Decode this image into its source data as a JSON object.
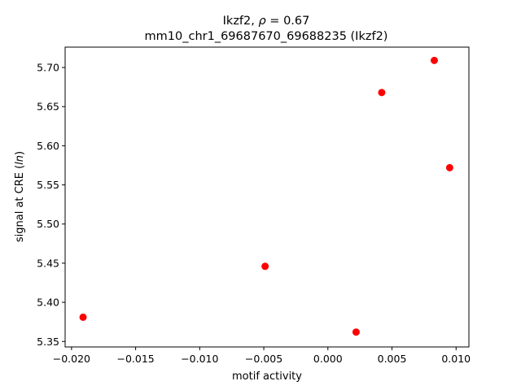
{
  "chart_data": {
    "type": "scatter",
    "title_line1": "Ikzf2, ρ = 0.67",
    "title_line2": "mm10_chr1_69687670_69688235 (Ikzf2)",
    "xlabel": "motif activity",
    "ylabel": "signal at CRE (ln)",
    "xlim": [
      -0.0205,
      0.011
    ],
    "ylim": [
      5.343,
      5.726
    ],
    "grid": false,
    "marker_color": "#ff0000",
    "x_ticks": [
      {
        "value": -0.02,
        "label": "−0.020"
      },
      {
        "value": -0.015,
        "label": "−0.015"
      },
      {
        "value": -0.01,
        "label": "−0.010"
      },
      {
        "value": -0.005,
        "label": "−0.005"
      },
      {
        "value": 0.0,
        "label": "0.000"
      },
      {
        "value": 0.005,
        "label": "0.005"
      },
      {
        "value": 0.01,
        "label": "0.010"
      }
    ],
    "y_ticks": [
      {
        "value": 5.35,
        "label": "5.35"
      },
      {
        "value": 5.4,
        "label": "5.40"
      },
      {
        "value": 5.45,
        "label": "5.45"
      },
      {
        "value": 5.5,
        "label": "5.50"
      },
      {
        "value": 5.55,
        "label": "5.55"
      },
      {
        "value": 5.6,
        "label": "5.60"
      },
      {
        "value": 5.65,
        "label": "5.65"
      },
      {
        "value": 5.7,
        "label": "5.70"
      }
    ],
    "points": [
      {
        "x": -0.0191,
        "y": 5.381
      },
      {
        "x": -0.0049,
        "y": 5.446
      },
      {
        "x": 0.0022,
        "y": 5.362
      },
      {
        "x": 0.0042,
        "y": 5.668
      },
      {
        "x": 0.0083,
        "y": 5.709
      },
      {
        "x": 0.0095,
        "y": 5.572
      }
    ]
  }
}
